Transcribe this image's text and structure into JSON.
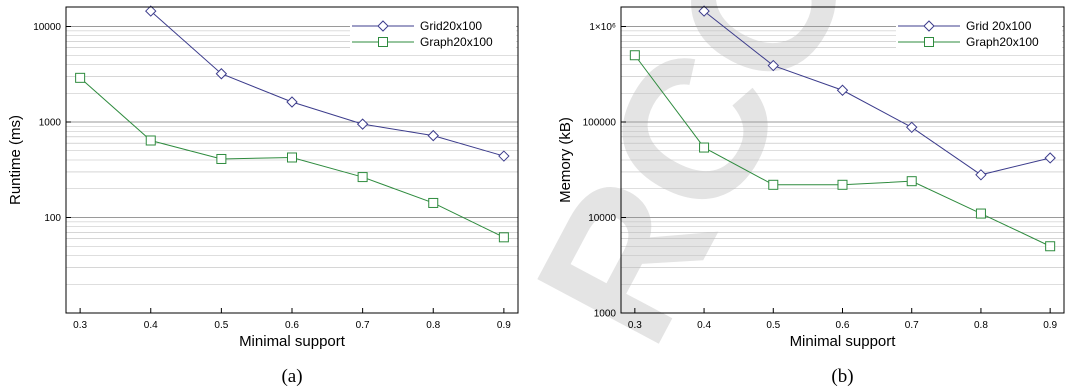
{
  "colors": {
    "grid_series": "#3c3c8c",
    "graph_series": "#2e8b3e",
    "gridlines": "#bdbdbd",
    "watermark": "#d9d9d9"
  },
  "watermark_text": "RCO",
  "chart_data": [
    {
      "type": "line",
      "caption": "(a)",
      "xlabel": "Minimal support",
      "ylabel": "Runtime (ms)",
      "yscale": "log",
      "xlim": [
        0.28,
        0.92
      ],
      "ylim": [
        10,
        16000
      ],
      "x_ticks": [
        "0.3",
        "0.4",
        "0.5",
        "0.6",
        "0.7",
        "0.8",
        "0.9"
      ],
      "y_ticks": [
        {
          "value": 100,
          "label": "100"
        },
        {
          "value": 1000,
          "label": "1000"
        },
        {
          "value": 10000,
          "label": "10000"
        }
      ],
      "grid": "horizontal",
      "legend_position": "top-right",
      "series": [
        {
          "name": "Grid20x100",
          "marker": "diamond",
          "x": [
            0.4,
            0.5,
            0.6,
            0.7,
            0.8,
            0.9
          ],
          "y": [
            14500,
            3200,
            1620,
            950,
            720,
            440
          ]
        },
        {
          "name": "Graph20x100",
          "marker": "square",
          "x": [
            0.3,
            0.4,
            0.5,
            0.6,
            0.7,
            0.8,
            0.9
          ],
          "y": [
            2900,
            640,
            410,
            425,
            265,
            142,
            62
          ]
        }
      ]
    },
    {
      "type": "line",
      "caption": "(b)",
      "xlabel": "Minimal support",
      "ylabel": "Memory (kB)",
      "yscale": "log",
      "xlim": [
        0.28,
        0.92
      ],
      "ylim": [
        1000,
        1600000
      ],
      "x_ticks": [
        "0.3",
        "0.4",
        "0.5",
        "0.6",
        "0.7",
        "0.8",
        "0.9"
      ],
      "y_ticks": [
        {
          "value": 1000,
          "label": "1000"
        },
        {
          "value": 10000,
          "label": "10000"
        },
        {
          "value": 100000,
          "label": "100000"
        },
        {
          "value": 1000000,
          "label": "1×10⁶"
        }
      ],
      "grid": "horizontal",
      "legend_position": "top-right",
      "series": [
        {
          "name": "Grid 20x100",
          "marker": "diamond",
          "x": [
            0.4,
            0.5,
            0.6,
            0.7,
            0.8,
            0.9
          ],
          "y": [
            1450000,
            390000,
            215000,
            88000,
            28000,
            42000
          ]
        },
        {
          "name": "Graph20x100",
          "marker": "square",
          "x": [
            0.3,
            0.4,
            0.5,
            0.6,
            0.7,
            0.8,
            0.9
          ],
          "y": [
            500000,
            54000,
            22000,
            22000,
            24000,
            11000,
            5000
          ]
        }
      ]
    }
  ]
}
